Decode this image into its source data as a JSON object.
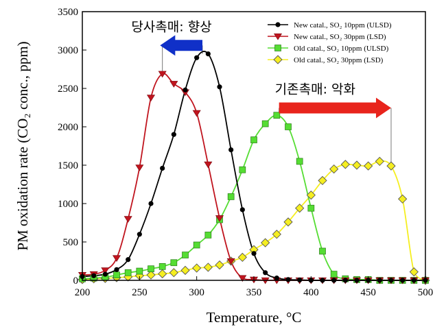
{
  "chart_data": {
    "type": "line",
    "xlabel": "Temperature, °C",
    "ylabel": "PM oxidation rate (CO₂ conc., ppm)",
    "xlim": [
      200,
      500
    ],
    "ylim": [
      0,
      3500
    ],
    "xticks": [
      200,
      250,
      300,
      350,
      400,
      450,
      500
    ],
    "yticks": [
      0,
      500,
      1000,
      1500,
      2000,
      2500,
      3000,
      3500
    ],
    "grid": false,
    "legend_position": "top-right",
    "series": [
      {
        "name": "New catal., SO₂ 10ppm (ULSD)",
        "color": "#000000",
        "marker": "circle",
        "x": [
          200,
          210,
          220,
          230,
          240,
          250,
          260,
          270,
          280,
          290,
          300,
          310,
          320,
          330,
          340,
          350,
          360,
          370,
          380,
          390,
          400,
          410,
          420,
          430,
          440,
          450,
          460,
          470,
          480,
          490,
          500
        ],
        "y": [
          50,
          60,
          80,
          140,
          270,
          600,
          1000,
          1460,
          1900,
          2480,
          2900,
          2950,
          2520,
          1700,
          920,
          350,
          100,
          30,
          10,
          5,
          0,
          0,
          0,
          0,
          0,
          0,
          0,
          0,
          0,
          0,
          0
        ]
      },
      {
        "name": "New catal., SO₂ 30ppm (LSD)",
        "color": "#c0141e",
        "marker": "triangle-down",
        "x": [
          200,
          210,
          220,
          230,
          240,
          250,
          260,
          270,
          280,
          290,
          300,
          310,
          320,
          330,
          340,
          350,
          360,
          370,
          380,
          390,
          400,
          410,
          420,
          430,
          440,
          450,
          460,
          470,
          480,
          490,
          500
        ],
        "y": [
          70,
          80,
          130,
          290,
          800,
          1470,
          2380,
          2690,
          2560,
          2450,
          2180,
          1510,
          810,
          250,
          30,
          10,
          0,
          0,
          0,
          0,
          0,
          0,
          0,
          0,
          0,
          0,
          0,
          0,
          0,
          0,
          0
        ]
      },
      {
        "name": "Old catal., SO₂ 10ppm (ULSD)",
        "color": "#55dd33",
        "marker": "square",
        "x": [
          200,
          210,
          220,
          230,
          240,
          250,
          260,
          270,
          280,
          290,
          300,
          310,
          320,
          330,
          340,
          350,
          360,
          370,
          380,
          390,
          400,
          410,
          420,
          430,
          440,
          450,
          460,
          470,
          480,
          490,
          500
        ],
        "y": [
          20,
          30,
          40,
          70,
          100,
          120,
          150,
          180,
          230,
          330,
          460,
          590,
          790,
          1090,
          1440,
          1830,
          2040,
          2150,
          2000,
          1550,
          940,
          380,
          80,
          20,
          10,
          10,
          0,
          0,
          0,
          0,
          0
        ]
      },
      {
        "name": "Old catal., SO₂ 30ppm (LSD)",
        "color": "#f5ee20",
        "marker": "diamond",
        "x": [
          200,
          210,
          220,
          230,
          240,
          250,
          260,
          270,
          280,
          290,
          300,
          310,
          320,
          330,
          340,
          350,
          360,
          370,
          380,
          390,
          400,
          410,
          420,
          430,
          440,
          450,
          460,
          470,
          480,
          490,
          500
        ],
        "y": [
          10,
          20,
          25,
          35,
          45,
          60,
          70,
          85,
          100,
          130,
          160,
          170,
          200,
          250,
          300,
          400,
          490,
          600,
          760,
          940,
          1110,
          1300,
          1450,
          1510,
          1500,
          1490,
          1550,
          1490,
          1060,
          110,
          0
        ]
      }
    ],
    "annotations": [
      {
        "text": "당사촉매: 향상",
        "arrow_direction": "left",
        "arrow_from_x": 305,
        "arrow_to_x": 268,
        "arrow_color": "#1030c8",
        "y": 3060
      },
      {
        "text": "기존촉매: 악화",
        "arrow_direction": "right",
        "arrow_from_x": 372,
        "arrow_to_x": 470,
        "arrow_color": "#e8241c",
        "y": 2245
      }
    ],
    "reference_lines": [
      {
        "x": 270,
        "y_from": 2690,
        "y_to": 3060
      },
      {
        "x": 305,
        "y_from": 2950,
        "y_to": 3060
      },
      {
        "x": 372,
        "y_from": 2150,
        "y_to": 2245
      },
      {
        "x": 470,
        "y_from": 1440,
        "y_to": 2245
      }
    ]
  }
}
